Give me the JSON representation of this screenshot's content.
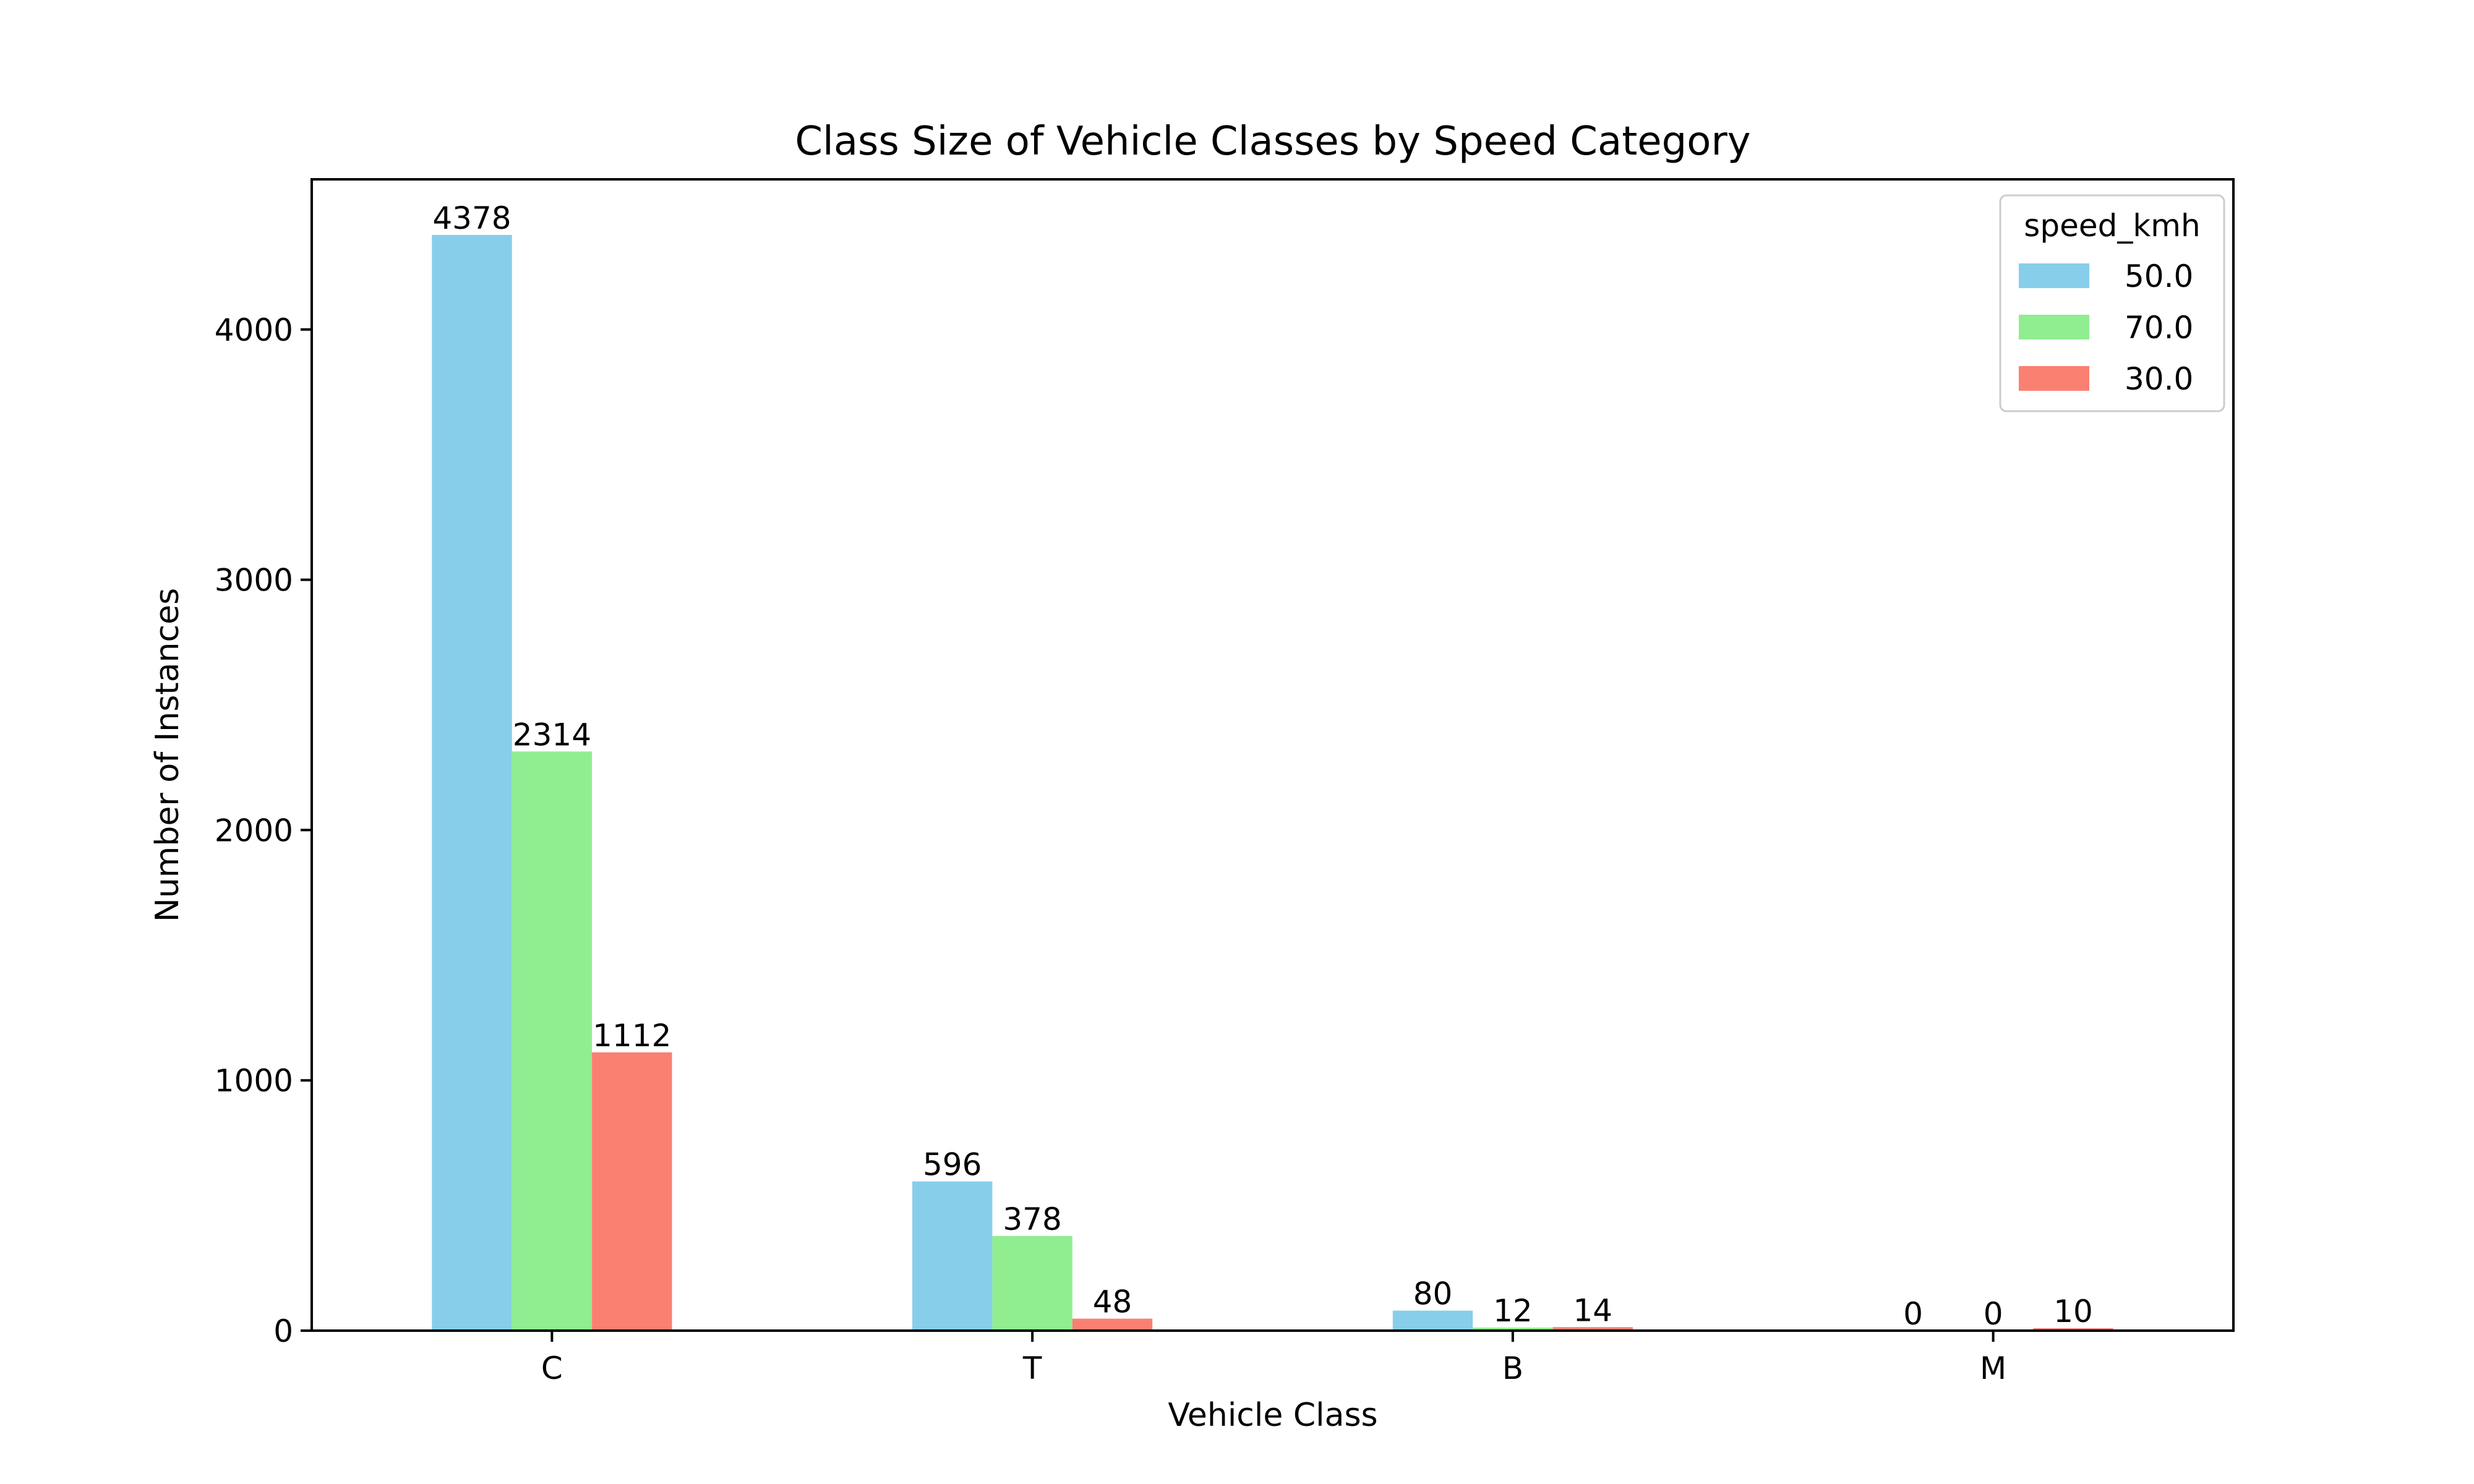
{
  "chart_data": {
    "type": "bar",
    "title": "Class Size of Vehicle Classes by Speed Category",
    "xlabel": "Vehicle Class",
    "ylabel": "Number of Instances",
    "categories": [
      "C",
      "T",
      "B",
      "M"
    ],
    "ylim": [
      0,
      4600
    ],
    "yticks": [
      0,
      1000,
      2000,
      3000,
      4000
    ],
    "grid": false,
    "legend": {
      "title": "speed_kmh",
      "placement": "top-right"
    },
    "series": [
      {
        "name": "50.0",
        "color": "#87CEEB",
        "values": [
          4378,
          596,
          80,
          0
        ]
      },
      {
        "name": "70.0",
        "color": "#90EE90",
        "values": [
          2314,
          378,
          12,
          0
        ]
      },
      {
        "name": "30.0",
        "color": "#FA8072",
        "values": [
          1112,
          48,
          14,
          10
        ]
      }
    ]
  }
}
